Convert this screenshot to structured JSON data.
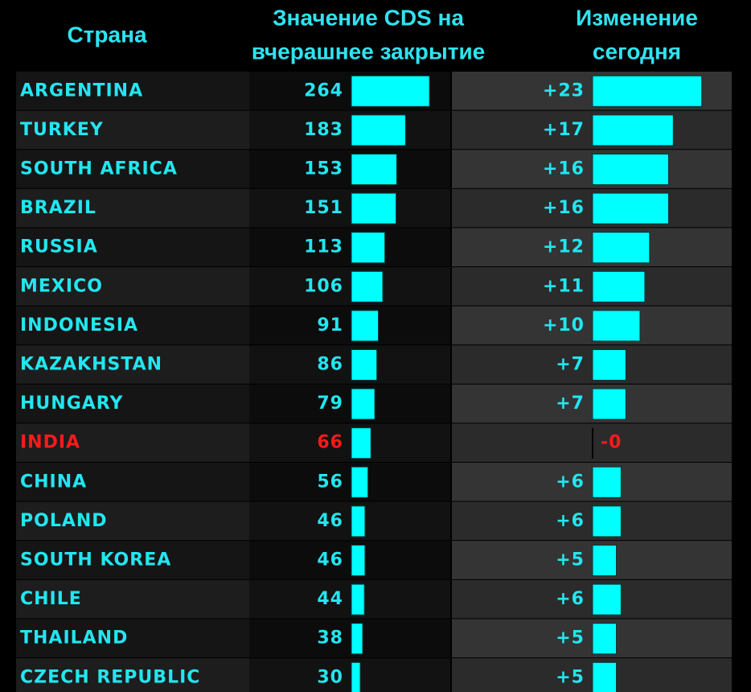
{
  "table": {
    "headers": {
      "country": [
        "Страна"
      ],
      "cds": [
        "Значение CDS на",
        "вчерашнее закрытие"
      ],
      "change": [
        "Изменение",
        "сегодня"
      ]
    },
    "rows": [
      {
        "country": "ARGENTINA",
        "cds": 264,
        "change": {
          "value": 23,
          "label": "+23"
        },
        "color": "#22e6f0"
      },
      {
        "country": "TURKEY",
        "cds": 183,
        "change": {
          "value": 17,
          "label": "+17"
        },
        "color": "#22e6f0"
      },
      {
        "country": "SOUTH AFRICA",
        "cds": 153,
        "change": {
          "value": 16,
          "label": "+16"
        },
        "color": "#22e6f0"
      },
      {
        "country": "BRAZIL",
        "cds": 151,
        "change": {
          "value": 16,
          "label": "+16"
        },
        "color": "#22e6f0"
      },
      {
        "country": "RUSSIA",
        "cds": 113,
        "change": {
          "value": 12,
          "label": "+12"
        },
        "color": "#22e6f0"
      },
      {
        "country": "MEXICO",
        "cds": 106,
        "change": {
          "value": 11,
          "label": "+11"
        },
        "color": "#22e6f0"
      },
      {
        "country": "INDONESIA",
        "cds": 91,
        "change": {
          "value": 10,
          "label": "+10"
        },
        "color": "#22e6f0"
      },
      {
        "country": "KAZAKHSTAN",
        "cds": 86,
        "change": {
          "value": 7,
          "label": "+7"
        },
        "color": "#22e6f0"
      },
      {
        "country": "HUNGARY",
        "cds": 79,
        "change": {
          "value": 7,
          "label": "+7"
        },
        "color": "#22e6f0"
      },
      {
        "country": "INDIA",
        "cds": 66,
        "change": {
          "value": 0,
          "label": "-0"
        },
        "color": "#ff1a1a"
      },
      {
        "country": "CHINA",
        "cds": 56,
        "change": {
          "value": 6,
          "label": "+6"
        },
        "color": "#22e6f0"
      },
      {
        "country": "POLAND",
        "cds": 46,
        "change": {
          "value": 6,
          "label": "+6"
        },
        "color": "#22e6f0"
      },
      {
        "country": "SOUTH KOREA",
        "cds": 46,
        "change": {
          "value": 5,
          "label": "+5"
        },
        "color": "#22e6f0"
      },
      {
        "country": "CHILE",
        "cds": 44,
        "change": {
          "value": 6,
          "label": "+6"
        },
        "color": "#22e6f0"
      },
      {
        "country": "THAILAND",
        "cds": 38,
        "change": {
          "value": 5,
          "label": "+5"
        },
        "color": "#22e6f0"
      },
      {
        "country": "CZECH REPUBLIC",
        "cds": 30,
        "change": {
          "value": 5,
          "label": "+5"
        },
        "color": "#22e6f0"
      }
    ],
    "bar_color": "#00ffff"
  }
}
